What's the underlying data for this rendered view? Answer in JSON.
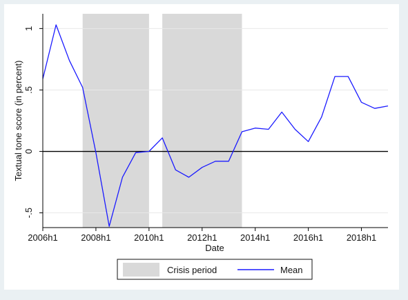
{
  "chart_data": {
    "type": "line",
    "xlabel": "Date",
    "ylabel": "Textual tone score (in percent)",
    "x_ticks": [
      {
        "value": 2006.0,
        "label": "2006h1"
      },
      {
        "value": 2008.0,
        "label": "2008h1"
      },
      {
        "value": 2010.0,
        "label": "2010h1"
      },
      {
        "value": 2012.0,
        "label": "2012h1"
      },
      {
        "value": 2014.0,
        "label": "2014h1"
      },
      {
        "value": 2016.0,
        "label": "2016h1"
      },
      {
        "value": 2018.0,
        "label": "2018h1"
      }
    ],
    "y_ticks": [
      {
        "value": -0.5,
        "label": "-.5"
      },
      {
        "value": 0,
        "label": "0"
      },
      {
        "value": 0.5,
        "label": ".5"
      },
      {
        "value": 1,
        "label": "1"
      }
    ],
    "xlim": [
      2006.0,
      2019.0
    ],
    "ylim": [
      -0.62,
      1.12
    ],
    "reference_line_y": 0,
    "grid": true,
    "legend_position": "bottom",
    "shaded_regions": {
      "name": "Crisis period",
      "color": "#d9d9d9",
      "ranges": [
        [
          2007.5,
          2010.0
        ],
        [
          2010.5,
          2013.5
        ]
      ]
    },
    "series": [
      {
        "name": "Mean",
        "color": "#1a1aff",
        "points": [
          {
            "x": 2006.0,
            "y": 0.59
          },
          {
            "x": 2006.5,
            "y": 1.03
          },
          {
            "x": 2007.0,
            "y": 0.74
          },
          {
            "x": 2007.5,
            "y": 0.52
          },
          {
            "x": 2008.0,
            "y": -0.01
          },
          {
            "x": 2008.5,
            "y": -0.61
          },
          {
            "x": 2009.0,
            "y": -0.21
          },
          {
            "x": 2009.5,
            "y": -0.01
          },
          {
            "x": 2010.0,
            "y": 0.0
          },
          {
            "x": 2010.5,
            "y": 0.11
          },
          {
            "x": 2011.0,
            "y": -0.15
          },
          {
            "x": 2011.5,
            "y": -0.21
          },
          {
            "x": 2012.0,
            "y": -0.13
          },
          {
            "x": 2012.5,
            "y": -0.08
          },
          {
            "x": 2013.0,
            "y": -0.08
          },
          {
            "x": 2013.5,
            "y": 0.16
          },
          {
            "x": 2014.0,
            "y": 0.19
          },
          {
            "x": 2014.5,
            "y": 0.18
          },
          {
            "x": 2015.0,
            "y": 0.32
          },
          {
            "x": 2015.5,
            "y": 0.18
          },
          {
            "x": 2016.0,
            "y": 0.08
          },
          {
            "x": 2016.5,
            "y": 0.28
          },
          {
            "x": 2017.0,
            "y": 0.61
          },
          {
            "x": 2017.5,
            "y": 0.61
          },
          {
            "x": 2018.0,
            "y": 0.4
          },
          {
            "x": 2018.5,
            "y": 0.35
          },
          {
            "x": 2019.0,
            "y": 0.37
          }
        ]
      }
    ]
  }
}
